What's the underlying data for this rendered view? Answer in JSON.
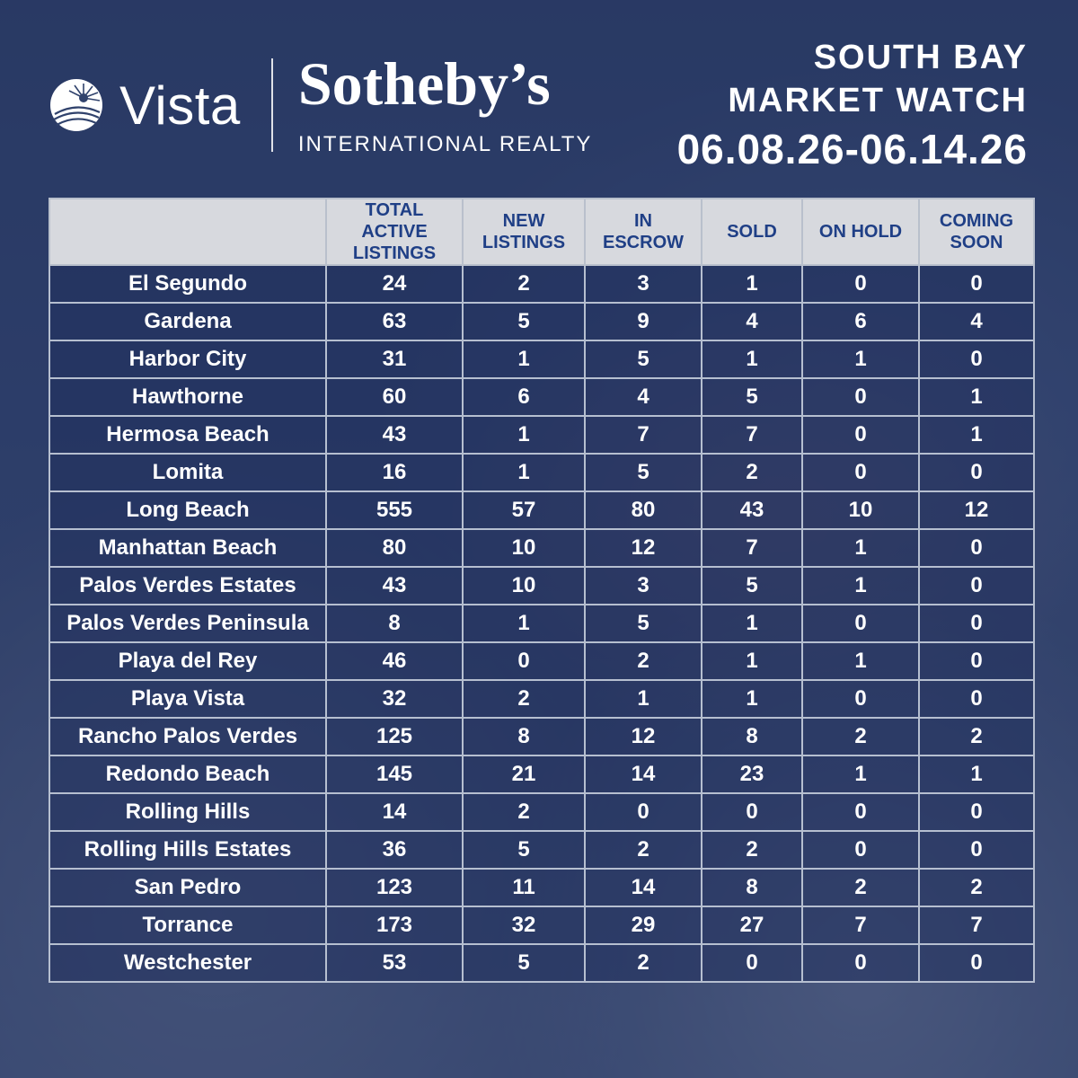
{
  "brand": {
    "vista": "Vista",
    "sothebys": "Sotheby’s",
    "sothebys_sub": "INTERNATIONAL REALTY"
  },
  "title": {
    "line1": "SOUTH BAY",
    "line2": "MARKET WATCH",
    "date_range": "06.08.26-06.14.26"
  },
  "table": {
    "headers": [
      "",
      "TOTAL ACTIVE\nLISTINGS",
      "NEW\nLISTINGS",
      "IN\nESCROW",
      "SOLD",
      "ON HOLD",
      "COMING\nSOON"
    ],
    "rows": [
      [
        "El Segundo",
        "24",
        "2",
        "3",
        "1",
        "0",
        "0"
      ],
      [
        "Gardena",
        "63",
        "5",
        "9",
        "4",
        "6",
        "4"
      ],
      [
        "Harbor City",
        "31",
        "1",
        "5",
        "1",
        "1",
        "0"
      ],
      [
        "Hawthorne",
        "60",
        "6",
        "4",
        "5",
        "0",
        "1"
      ],
      [
        "Hermosa Beach",
        "43",
        "1",
        "7",
        "7",
        "0",
        "1"
      ],
      [
        "Lomita",
        "16",
        "1",
        "5",
        "2",
        "0",
        "0"
      ],
      [
        "Long Beach",
        "555",
        "57",
        "80",
        "43",
        "10",
        "12"
      ],
      [
        "Manhattan Beach",
        "80",
        "10",
        "12",
        "7",
        "1",
        "0"
      ],
      [
        "Palos Verdes Estates",
        "43",
        "10",
        "3",
        "5",
        "1",
        "0"
      ],
      [
        "Palos Verdes Peninsula",
        "8",
        "1",
        "5",
        "1",
        "0",
        "0"
      ],
      [
        "Playa del Rey",
        "46",
        "0",
        "2",
        "1",
        "1",
        "0"
      ],
      [
        "Playa Vista",
        "32",
        "2",
        "1",
        "1",
        "0",
        "0"
      ],
      [
        "Rancho Palos Verdes",
        "125",
        "8",
        "12",
        "8",
        "2",
        "2"
      ],
      [
        "Redondo Beach",
        "145",
        "21",
        "14",
        "23",
        "1",
        "1"
      ],
      [
        "Rolling Hills",
        "14",
        "2",
        "0",
        "0",
        "0",
        "0"
      ],
      [
        "Rolling Hills Estates",
        "36",
        "5",
        "2",
        "2",
        "0",
        "0"
      ],
      [
        "San Pedro",
        "123",
        "11",
        "14",
        "8",
        "2",
        "2"
      ],
      [
        "Torrance",
        "173",
        "32",
        "29",
        "27",
        "7",
        "7"
      ],
      [
        "Westchester",
        "53",
        "5",
        "2",
        "0",
        "0",
        "0"
      ]
    ]
  },
  "colors": {
    "header_bg": "#d7d9de",
    "header_text": "#1f3f86",
    "cell_text": "#ffffff"
  }
}
